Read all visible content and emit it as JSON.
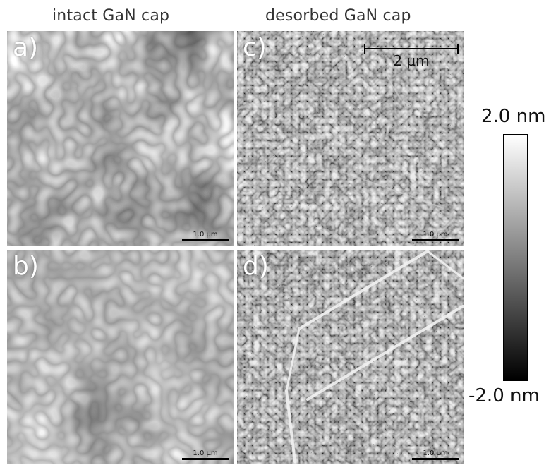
{
  "titles": {
    "left": "intact GaN cap",
    "right": "desorbed GaN cap"
  },
  "panels": {
    "a": {
      "label": "a)",
      "scale": "1.0 µm"
    },
    "b": {
      "label": "b)",
      "scale": "1.0 µm"
    },
    "c": {
      "label": "c)",
      "scale": "1.0 µm"
    },
    "d": {
      "label": "d)",
      "scale": "1.0 µm"
    }
  },
  "top_scale": "2 µm",
  "colorbar": {
    "max": "2.0 nm",
    "min": "-2.0 nm",
    "top_color": "#ffffff",
    "bottom_color": "#000000"
  }
}
